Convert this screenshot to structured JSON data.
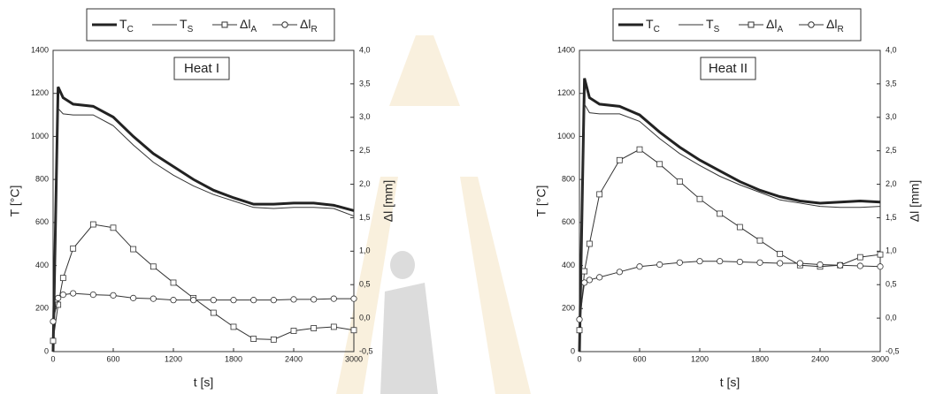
{
  "chart_data": [
    {
      "type": "line",
      "annotation": "Heat I",
      "xlabel": "t [s]",
      "ylabel": "T [°C]",
      "y2label": "Δl  [mm]",
      "x": [
        0,
        50,
        100,
        200,
        400,
        600,
        800,
        1000,
        1200,
        1400,
        1600,
        1800,
        2000,
        2200,
        2400,
        2600,
        2800,
        3000
      ],
      "xlim": [
        0,
        3000
      ],
      "xticks": [
        0,
        600,
        1200,
        1800,
        2400,
        3000
      ],
      "ylim": [
        0,
        1400
      ],
      "yticks": [
        0,
        200,
        400,
        600,
        800,
        1000,
        1200,
        1400
      ],
      "y2lim": [
        -0.5,
        4.0
      ],
      "y2ticks": [
        {
          "value": -0.5,
          "label": "-0,5"
        },
        {
          "value": 0,
          "label": "0,0"
        },
        {
          "value": 0.5,
          "label": "0,5"
        },
        {
          "value": 1.0,
          "label": "1,0"
        },
        {
          "value": 1.5,
          "label": "1,5"
        },
        {
          "value": 2.0,
          "label": "2,0"
        },
        {
          "value": 2.5,
          "label": "2,5"
        },
        {
          "value": 3.0,
          "label": "3,0"
        },
        {
          "value": 3.5,
          "label": "3,5"
        },
        {
          "value": 4.0,
          "label": "4,0"
        }
      ],
      "series": [
        {
          "name": "T",
          "sub": "C",
          "color": "#222222",
          "linewidth": 3,
          "marker": "none",
          "values": [
            0,
            1230,
            1180,
            1150,
            1140,
            1090,
            1000,
            920,
            860,
            800,
            750,
            715,
            685,
            685,
            690,
            690,
            680,
            655
          ]
        },
        {
          "name": "T",
          "sub": "S",
          "color": "#333333",
          "linewidth": 1,
          "marker": "none",
          "values": [
            0,
            1130,
            1105,
            1100,
            1100,
            1050,
            960,
            880,
            820,
            770,
            730,
            700,
            670,
            665,
            670,
            670,
            665,
            630
          ]
        },
        {
          "name": "Δl",
          "sub": "A",
          "color": "#333333",
          "linewidth": 1,
          "marker": "square",
          "axis": "y2",
          "values": [
            -0.34,
            0.2,
            0.6,
            1.04,
            1.4,
            1.35,
            1.03,
            0.77,
            0.53,
            0.3,
            0.08,
            -0.13,
            -0.31,
            -0.32,
            -0.19,
            -0.15,
            -0.13,
            -0.18
          ]
        },
        {
          "name": "Δl",
          "sub": "R",
          "color": "#333333",
          "linewidth": 1,
          "marker": "circle",
          "axis": "y2",
          "values": [
            -0.05,
            0.3,
            0.35,
            0.37,
            0.35,
            0.34,
            0.3,
            0.29,
            0.27,
            0.27,
            0.27,
            0.27,
            0.27,
            0.27,
            0.28,
            0.28,
            0.29,
            0.29
          ]
        }
      ]
    },
    {
      "type": "line",
      "annotation": "Heat II",
      "xlabel": "t [s]",
      "ylabel": "T [°C]",
      "y2label": "Δl  [mm]",
      "x": [
        0,
        50,
        100,
        200,
        400,
        600,
        800,
        1000,
        1200,
        1400,
        1600,
        1800,
        2000,
        2200,
        2400,
        2600,
        2800,
        3000
      ],
      "xlim": [
        0,
        3000
      ],
      "xticks": [
        0,
        600,
        1200,
        1800,
        2400,
        3000
      ],
      "ylim": [
        0,
        1400
      ],
      "yticks": [
        0,
        200,
        400,
        600,
        800,
        1000,
        1200,
        1400
      ],
      "y2lim": [
        -0.5,
        4.0
      ],
      "y2ticks": [
        {
          "value": -0.5,
          "label": "-0,5"
        },
        {
          "value": 0,
          "label": "0,0"
        },
        {
          "value": 0.5,
          "label": "0,5"
        },
        {
          "value": 1.0,
          "label": "1,0"
        },
        {
          "value": 1.5,
          "label": "1,5"
        },
        {
          "value": 2.0,
          "label": "2,0"
        },
        {
          "value": 2.5,
          "label": "2,5"
        },
        {
          "value": 3.0,
          "label": "3,0"
        },
        {
          "value": 3.5,
          "label": "3,5"
        },
        {
          "value": 4.0,
          "label": "4,0"
        }
      ],
      "series": [
        {
          "name": "T",
          "sub": "C",
          "color": "#222222",
          "linewidth": 3,
          "marker": "none",
          "values": [
            0,
            1270,
            1180,
            1150,
            1140,
            1100,
            1020,
            950,
            890,
            840,
            790,
            750,
            720,
            700,
            690,
            695,
            700,
            695
          ]
        },
        {
          "name": "T",
          "sub": "S",
          "color": "#333333",
          "linewidth": 1,
          "marker": "none",
          "values": [
            0,
            1150,
            1110,
            1105,
            1105,
            1070,
            990,
            920,
            865,
            815,
            775,
            740,
            705,
            690,
            675,
            670,
            670,
            675
          ]
        },
        {
          "name": "Δl",
          "sub": "A",
          "color": "#333333",
          "linewidth": 1,
          "marker": "square",
          "axis": "y2",
          "values": [
            -0.18,
            0.7,
            1.11,
            1.85,
            2.36,
            2.52,
            2.3,
            2.04,
            1.78,
            1.56,
            1.36,
            1.16,
            0.96,
            0.79,
            0.77,
            0.79,
            0.91,
            0.95
          ]
        },
        {
          "name": "Δl",
          "sub": "R",
          "color": "#333333",
          "linewidth": 1,
          "marker": "circle",
          "axis": "y2",
          "values": [
            -0.02,
            0.53,
            0.57,
            0.61,
            0.69,
            0.77,
            0.8,
            0.83,
            0.85,
            0.85,
            0.84,
            0.83,
            0.82,
            0.82,
            0.8,
            0.79,
            0.78,
            0.77
          ]
        }
      ]
    }
  ]
}
